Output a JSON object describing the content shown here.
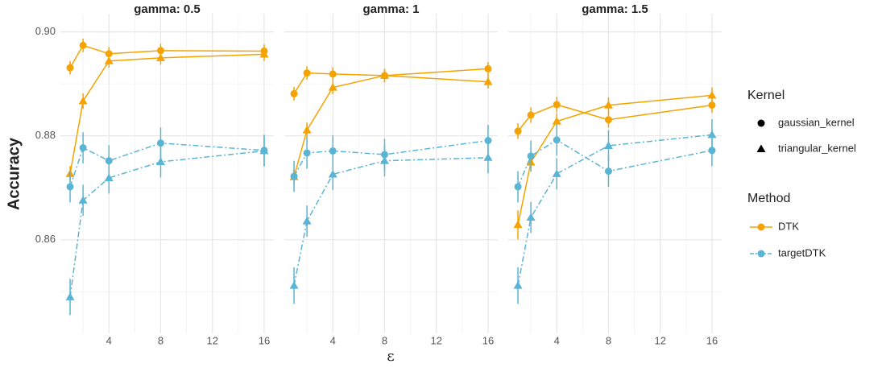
{
  "chart_data": [
    {
      "type": "line",
      "title": "gamma: 0.5",
      "y_label": "Accuracy",
      "x_label": "ε",
      "x": [
        1,
        2,
        4,
        8,
        16
      ],
      "xlim": [
        0.25,
        16.75
      ],
      "xticks": [
        4,
        8,
        12,
        16
      ],
      "ylim": [
        0.842,
        0.9035
      ],
      "yticks": [
        {
          "value": 0.86,
          "label": "0.86"
        },
        {
          "value": 0.88,
          "label": "0.88"
        },
        {
          "value": 0.9,
          "label": "0.90"
        }
      ],
      "grid": true,
      "series": [
        {
          "method": "DTK",
          "kernel": "gaussian_kernel",
          "color": "#f5a300",
          "values": [
            0.8931,
            0.8974,
            0.8958,
            0.8964,
            0.8963
          ],
          "errors": [
            0.0013,
            0.0013,
            0.0013,
            0.0013,
            0.0013
          ]
        },
        {
          "method": "DTK",
          "kernel": "triangular_kernel",
          "color": "#f5a300",
          "values": [
            0.8727,
            0.8867,
            0.8944,
            0.895,
            0.8957
          ],
          "errors": [
            0.0015,
            0.0015,
            0.0013,
            0.0013,
            0.0013
          ]
        },
        {
          "method": "targetDTK",
          "kernel": "gaussian_kernel",
          "color": "#5ab4d4",
          "values": [
            0.8702,
            0.8777,
            0.8752,
            0.8786,
            0.8772
          ],
          "errors": [
            0.003,
            0.003,
            0.003,
            0.003,
            0.003
          ]
        },
        {
          "method": "targetDTK",
          "kernel": "triangular_kernel",
          "color": "#5ab4d4",
          "values": [
            0.849,
            0.8676,
            0.8719,
            0.875,
            0.8771
          ],
          "errors": [
            0.0035,
            0.003,
            0.003,
            0.003,
            0.003
          ]
        }
      ]
    },
    {
      "type": "line",
      "title": "gamma: 1",
      "x": [
        1,
        2,
        4,
        8,
        16
      ],
      "xlim": [
        0.25,
        16.75
      ],
      "xticks": [
        4,
        8,
        12,
        16
      ],
      "series": [
        {
          "method": "DTK",
          "kernel": "gaussian_kernel",
          "color": "#f5a300",
          "values": [
            0.8881,
            0.8921,
            0.8919,
            0.8916,
            0.8929
          ],
          "errors": [
            0.0013,
            0.0013,
            0.0013,
            0.0013,
            0.0013
          ]
        },
        {
          "method": "DTK",
          "kernel": "triangular_kernel",
          "color": "#f5a300",
          "values": [
            0.8721,
            0.8811,
            0.8893,
            0.8916,
            0.8904
          ],
          "errors": [
            0.0015,
            0.0015,
            0.0013,
            0.0013,
            0.0013
          ]
        },
        {
          "method": "targetDTK",
          "kernel": "gaussian_kernel",
          "color": "#5ab4d4",
          "values": [
            0.8722,
            0.8767,
            0.8771,
            0.8764,
            0.8791
          ],
          "errors": [
            0.003,
            0.003,
            0.003,
            0.003,
            0.003
          ]
        },
        {
          "method": "targetDTK",
          "kernel": "triangular_kernel",
          "color": "#5ab4d4",
          "values": [
            0.8512,
            0.8636,
            0.8726,
            0.8752,
            0.8758
          ],
          "errors": [
            0.0035,
            0.003,
            0.003,
            0.003,
            0.003
          ]
        }
      ]
    },
    {
      "type": "line",
      "title": "gamma: 1.5",
      "x": [
        1,
        2,
        4,
        8,
        16
      ],
      "xlim": [
        0.25,
        16.75
      ],
      "xticks": [
        4,
        8,
        12,
        16
      ],
      "series": [
        {
          "method": "DTK",
          "kernel": "gaussian_kernel",
          "color": "#f5a300",
          "values": [
            0.8809,
            0.884,
            0.886,
            0.8831,
            0.8859
          ],
          "errors": [
            0.0015,
            0.0015,
            0.0015,
            0.0015,
            0.0015
          ]
        },
        {
          "method": "DTK",
          "kernel": "triangular_kernel",
          "color": "#f5a300",
          "values": [
            0.8629,
            0.8749,
            0.8828,
            0.8859,
            0.8878
          ],
          "errors": [
            0.0028,
            0.0015,
            0.0015,
            0.0015,
            0.0015
          ]
        },
        {
          "method": "targetDTK",
          "kernel": "gaussian_kernel",
          "color": "#5ab4d4",
          "values": [
            0.8702,
            0.8761,
            0.8792,
            0.8732,
            0.8772
          ],
          "errors": [
            0.003,
            0.003,
            0.003,
            0.003,
            0.003
          ]
        },
        {
          "method": "targetDTK",
          "kernel": "triangular_kernel",
          "color": "#5ab4d4",
          "values": [
            0.8512,
            0.8643,
            0.8727,
            0.8781,
            0.8802
          ],
          "errors": [
            0.0035,
            0.003,
            0.003,
            0.003,
            0.003
          ]
        }
      ]
    }
  ],
  "legends": [
    {
      "title": "Kernel",
      "items": [
        "gaussian_kernel",
        "triangular_kernel"
      ]
    },
    {
      "title": "Method",
      "items": [
        {
          "name": "DTK",
          "color": "#f5a300"
        },
        {
          "name": "targetDTK",
          "color": "#5ab4d4"
        }
      ]
    }
  ]
}
